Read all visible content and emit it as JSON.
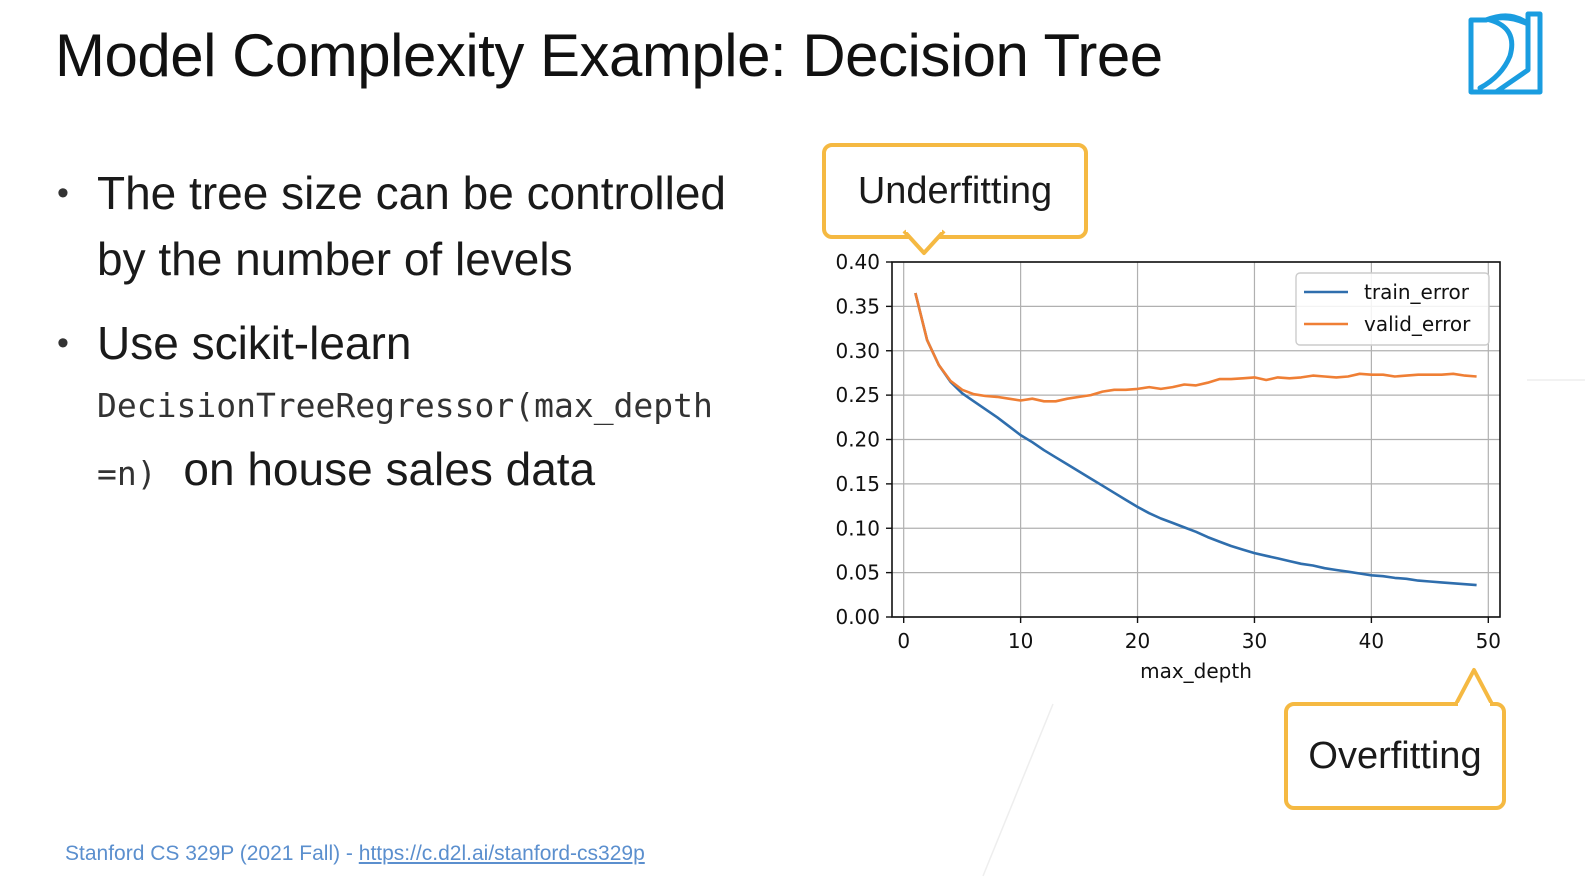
{
  "slide": {
    "title": "Model Complexity Example: Decision Tree",
    "bullets": [
      {
        "text": "The tree size can be controlled by the number of levels"
      },
      {
        "text_before": "Use scikit-learn",
        "code_line1": "DecisionTreeRegressor(max_depth",
        "code_line2": "=n)",
        "text_after": "on house sales data"
      }
    ],
    "bullet_glyph": "•",
    "callouts": {
      "underfitting": "Underfitting",
      "overfitting": "Overfitting"
    },
    "footer": {
      "text": "Stanford CS 329P (2021 Fall) - ",
      "link": "https://c.d2l.ai/stanford-cs329p"
    },
    "logo_icon": "d2l-logo-icon",
    "colors": {
      "accent_callout": "#f5b942",
      "logo": "#1a9de0",
      "footer": "#5b8fce"
    }
  },
  "chart_data": {
    "type": "line",
    "title": "",
    "xlabel": "max_depth",
    "ylabel": "",
    "xlim": [
      -1,
      51
    ],
    "ylim": [
      0.0,
      0.4
    ],
    "xticks": [
      0,
      10,
      20,
      30,
      40,
      50
    ],
    "yticks": [
      0.0,
      0.05,
      0.1,
      0.15,
      0.2,
      0.25,
      0.3,
      0.35,
      0.4
    ],
    "ytick_labels": [
      "0.00",
      "0.05",
      "0.10",
      "0.15",
      "0.20",
      "0.25",
      "0.30",
      "0.35",
      "0.40"
    ],
    "grid": true,
    "legend_position": "top-right",
    "x": [
      1,
      2,
      3,
      4,
      5,
      6,
      7,
      8,
      9,
      10,
      11,
      12,
      13,
      14,
      15,
      16,
      17,
      18,
      19,
      20,
      21,
      22,
      23,
      24,
      25,
      26,
      27,
      28,
      29,
      30,
      31,
      32,
      33,
      34,
      35,
      36,
      37,
      38,
      39,
      40,
      41,
      42,
      43,
      44,
      45,
      46,
      47,
      48,
      49
    ],
    "series": [
      {
        "name": "train_error",
        "color": "#2f6ead",
        "values": [
          0.365,
          0.312,
          0.284,
          0.265,
          0.252,
          0.243,
          0.234,
          0.225,
          0.215,
          0.205,
          0.197,
          0.188,
          0.18,
          0.172,
          0.164,
          0.156,
          0.148,
          0.14,
          0.132,
          0.124,
          0.117,
          0.111,
          0.106,
          0.101,
          0.096,
          0.09,
          0.085,
          0.08,
          0.076,
          0.072,
          0.069,
          0.066,
          0.063,
          0.06,
          0.058,
          0.055,
          0.053,
          0.051,
          0.049,
          0.047,
          0.046,
          0.044,
          0.043,
          0.041,
          0.04,
          0.039,
          0.038,
          0.037,
          0.036
        ]
      },
      {
        "name": "valid_error",
        "color": "#ef7f35",
        "values": [
          0.365,
          0.312,
          0.284,
          0.266,
          0.256,
          0.251,
          0.249,
          0.248,
          0.246,
          0.244,
          0.246,
          0.243,
          0.243,
          0.246,
          0.248,
          0.25,
          0.254,
          0.256,
          0.256,
          0.257,
          0.259,
          0.257,
          0.259,
          0.262,
          0.261,
          0.264,
          0.268,
          0.268,
          0.269,
          0.27,
          0.267,
          0.27,
          0.269,
          0.27,
          0.272,
          0.271,
          0.27,
          0.271,
          0.274,
          0.273,
          0.273,
          0.271,
          0.272,
          0.273,
          0.273,
          0.273,
          0.274,
          0.272,
          0.271
        ]
      }
    ]
  }
}
